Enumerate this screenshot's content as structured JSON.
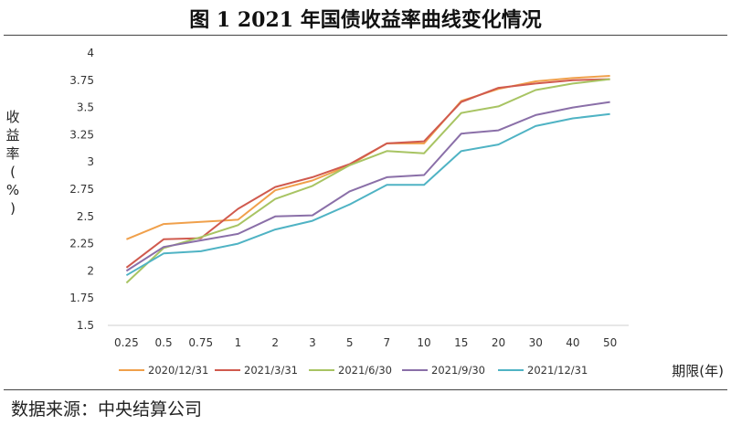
{
  "header": {
    "title": "图 1 2021 年国债收益率曲线变化情况"
  },
  "footer": {
    "source": "数据来源：中央结算公司"
  },
  "chart_data": {
    "type": "line",
    "title": "图 1 2021 年国债收益率曲线变化情况",
    "xlabel": "期限(年)",
    "ylabel": "收益率(%)",
    "categories": [
      "0.25",
      "0.5",
      "0.75",
      "1",
      "2",
      "3",
      "5",
      "7",
      "10",
      "15",
      "20",
      "30",
      "40",
      "50"
    ],
    "ylim": [
      1.5,
      4
    ],
    "yticks": [
      "1.5",
      "1.75",
      "2",
      "2.25",
      "2.5",
      "2.75",
      "3",
      "3.25",
      "3.5",
      "3.75",
      "4"
    ],
    "grid": false,
    "legend_position": "bottom",
    "series": [
      {
        "name": "2020/12/31",
        "color": "#f0a04b",
        "values": [
          2.29,
          2.43,
          2.45,
          2.47,
          2.74,
          2.83,
          2.97,
          3.17,
          3.17,
          3.56,
          3.67,
          3.74,
          3.77,
          3.79
        ]
      },
      {
        "name": "2021/3/31",
        "color": "#d05a4e",
        "values": [
          2.03,
          2.29,
          2.3,
          2.57,
          2.77,
          2.86,
          2.98,
          3.17,
          3.19,
          3.55,
          3.68,
          3.72,
          3.75,
          3.76
        ]
      },
      {
        "name": "2021/6/30",
        "color": "#a8c463",
        "values": [
          1.89,
          2.21,
          2.31,
          2.42,
          2.66,
          2.78,
          2.97,
          3.1,
          3.08,
          3.45,
          3.51,
          3.66,
          3.72,
          3.76
        ]
      },
      {
        "name": "2021/9/30",
        "color": "#8a6fa8",
        "values": [
          2.0,
          2.22,
          2.28,
          2.34,
          2.5,
          2.51,
          2.73,
          2.86,
          2.88,
          3.26,
          3.29,
          3.43,
          3.5,
          3.55
        ]
      },
      {
        "name": "2021/12/31",
        "color": "#4fb3c4",
        "values": [
          1.96,
          2.16,
          2.18,
          2.25,
          2.38,
          2.46,
          2.61,
          2.79,
          2.79,
          3.1,
          3.16,
          3.33,
          3.4,
          3.44
        ]
      }
    ]
  }
}
